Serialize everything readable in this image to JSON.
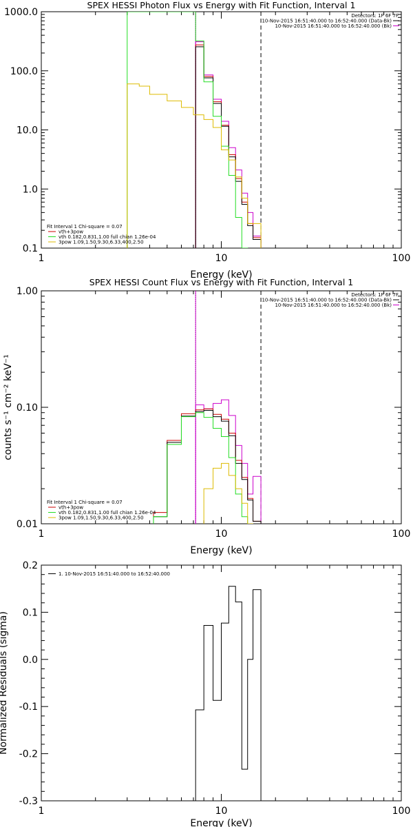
{
  "chart_data": [
    {
      "type": "step",
      "title": "SPEX HESSI Photon Flux vs Energy with Fit Function, Interval 1",
      "xlabel": "Energy (keV)",
      "ylabel": "",
      "xscale": "log",
      "yscale": "log",
      "xlim": [
        1,
        100
      ],
      "ylim": [
        0.1,
        1000
      ],
      "xticks": [
        1,
        10,
        100
      ],
      "xtick_labels": [
        "1",
        "10",
        "100"
      ],
      "yticks": [
        0.1,
        1,
        10,
        100,
        1000
      ],
      "ytick_labels": [
        "0.1",
        "1.0",
        "10.0",
        "100.0",
        "1000.0"
      ],
      "vlines": [
        {
          "x": 7.2,
          "style": "dotted",
          "color": "#000000"
        },
        {
          "x": 7.2,
          "style": "solid",
          "color": "#cc00cc"
        },
        {
          "x": 16.6,
          "style": "dashed",
          "color": "#000000"
        }
      ],
      "info_lines": [
        "Detectors: 1F 6F 7F",
        "10-Nov-2015 16:51:40.000 to 16:52:40.000 (Data-Bk)",
        "10-Nov-2015 16:51:40.000 to 16:52:40.000 (Bk)"
      ],
      "info_colors": [
        "",
        "#000000",
        "#cc00cc"
      ],
      "legend": {
        "header": "Fit Interval 1    Chi-square = 0.07",
        "items": [
          {
            "label": "vth+3pow",
            "color": "#cc0000"
          },
          {
            "label": "vth 0.182,0.831,1.00  full chian 1.26e-04",
            "color": "#22dd22"
          },
          {
            "label": "3pow 1.09,1.50,9.30,6.33,400,2.50",
            "color": "#ddbb00"
          }
        ]
      },
      "series": [
        {
          "color": "#cc00cc",
          "edges": [
            7.2,
            8.0,
            9.0,
            10.0,
            11.0,
            12.0,
            13.0,
            14.0,
            15.0,
            16.6
          ],
          "values": [
            310,
            85,
            33,
            14,
            5,
            2.1,
            0.85,
            0.4,
            0.16
          ]
        },
        {
          "color": "#cc0000",
          "edges": [
            7.2,
            8.0,
            9.0,
            10.0,
            11.0,
            12.0,
            13.0,
            14.0,
            15.0,
            16.6
          ],
          "values": [
            275,
            80,
            30,
            12,
            3.8,
            1.5,
            0.6,
            0.26,
            0.15
          ]
        },
        {
          "color": "#000000",
          "edges": [
            7.2,
            8.0,
            9.0,
            10.0,
            11.0,
            12.0,
            13.0,
            14.0,
            15.0,
            16.6
          ],
          "values": [
            255,
            76,
            28,
            11.5,
            3.5,
            1.35,
            0.55,
            0.24,
            0.14
          ]
        },
        {
          "color": "#22dd22",
          "edges": [
            3.0,
            7.2,
            8.0,
            9.0,
            10.0,
            11.0,
            12.0,
            13.0,
            14.0
          ],
          "values": [
            1000,
            320,
            65,
            17,
            5.3,
            1.7,
            0.33,
            0.1
          ]
        },
        {
          "color": "#ddbb00",
          "edges": [
            3.0,
            3.5,
            4.0,
            5.0,
            6.0,
            7.0,
            8.0,
            9.0,
            10.0,
            11.0,
            12.0,
            13.0,
            14.0,
            16.6
          ],
          "values": [
            60,
            55,
            40,
            31,
            24,
            18,
            15,
            11,
            4.6,
            3.1,
            1.6,
            0.7,
            0.26
          ]
        }
      ]
    },
    {
      "type": "step",
      "title": "SPEX HESSI Count Flux vs Energy with Fit Function, Interval 1",
      "xlabel": "Energy (keV)",
      "ylabel": "counts s⁻¹ cm⁻² keV⁻¹",
      "xscale": "log",
      "yscale": "log",
      "xlim": [
        1,
        100
      ],
      "ylim": [
        0.01,
        1.0
      ],
      "xticks": [
        1,
        10,
        100
      ],
      "xtick_labels": [
        "1",
        "10",
        "100"
      ],
      "yticks": [
        0.01,
        0.1,
        1.0
      ],
      "ytick_labels": [
        "0.01",
        "0.10",
        "1.00"
      ],
      "vlines": [
        {
          "x": 7.2,
          "style": "dotted",
          "color": "#000000"
        },
        {
          "x": 7.2,
          "style": "solid",
          "color": "#cc00cc"
        },
        {
          "x": 16.6,
          "style": "dashed",
          "color": "#000000"
        }
      ],
      "info_lines": [
        "Detectors: 1F 6F 7F",
        "10-Nov-2015 16:51:40.000 to 16:52:40.000 (Data-Bk)",
        "10-Nov-2015 16:51:40.000 to 16:52:40.000 (Bk)"
      ],
      "info_colors": [
        "",
        "#000000",
        "#cc00cc"
      ],
      "legend": {
        "header": "Fit Interval 1    Chi-square = 0.07",
        "items": [
          {
            "label": "vth+3pow",
            "color": "#cc0000"
          },
          {
            "label": "vth 0.182,0.831,1.00  full chian 1.26e-04",
            "color": "#22dd22"
          },
          {
            "label": "3pow 1.09,1.50,9.30,6.33,400,2.50",
            "color": "#ddbb00"
          }
        ]
      },
      "series": [
        {
          "color": "#cc00cc",
          "edges": [
            7.2,
            8.0,
            9.0,
            10.0,
            11.0,
            12.0,
            13.0,
            14.0,
            15.0,
            16.6
          ],
          "values": [
            0.105,
            0.097,
            0.108,
            0.116,
            0.085,
            0.047,
            0.033,
            0.018,
            0.0255
          ]
        },
        {
          "color": "#cc0000",
          "edges": [
            4.2,
            5.0,
            6.0,
            7.2,
            8.0,
            9.0,
            10.0,
            11.0,
            12.0,
            13.0,
            14.0,
            15.0,
            16.6
          ],
          "values": [
            0.0125,
            0.052,
            0.088,
            0.095,
            0.097,
            0.087,
            0.079,
            0.06,
            0.035,
            0.025,
            0.0165,
            0.0105
          ]
        },
        {
          "color": "#000000",
          "edges": [
            4.2,
            5.0,
            6.0,
            7.2,
            8.0,
            9.0,
            10.0,
            11.0,
            12.0,
            13.0,
            14.0,
            15.0,
            16.6
          ],
          "values": [
            0.0115,
            0.05,
            0.084,
            0.092,
            0.094,
            0.083,
            0.076,
            0.057,
            0.033,
            0.024,
            0.016,
            0.0105
          ]
        },
        {
          "color": "#22dd22",
          "edges": [
            4.2,
            5.0,
            6.0,
            7.2,
            8.0,
            9.0,
            10.0,
            11.0,
            12.0,
            13.0,
            14.0
          ],
          "values": [
            0.0115,
            0.048,
            0.083,
            0.09,
            0.082,
            0.066,
            0.056,
            0.037,
            0.018,
            0.0115,
            0.01
          ]
        },
        {
          "color": "#ddbb00",
          "edges": [
            8.0,
            9.0,
            10.0,
            11.0,
            12.0,
            13.0,
            14.0,
            15.0
          ],
          "values": [
            0.02,
            0.03,
            0.033,
            0.026,
            0.02,
            0.015,
            0.01
          ]
        }
      ]
    },
    {
      "type": "step",
      "title": "",
      "xlabel": "Energy (keV)",
      "ylabel": "Normalized Residuals (sigma)",
      "xscale": "log",
      "yscale": "linear",
      "xlim": [
        1,
        100
      ],
      "ylim": [
        -0.3,
        0.2
      ],
      "xticks": [
        1,
        10,
        100
      ],
      "xtick_labels": [
        "1",
        "10",
        "100"
      ],
      "yticks": [
        -0.3,
        -0.2,
        -0.1,
        0.0,
        0.1,
        0.2
      ],
      "ytick_labels": [
        "-0.3",
        "-0.2",
        "-0.1",
        "0.0",
        "0.1",
        "0.2"
      ],
      "vlines": [],
      "info_lines": [],
      "info_colors": [],
      "legend": {
        "header": "",
        "items": [
          {
            "label": "1. 10-Nov-2015 16:51:40.000 to 16:52:40.000",
            "color": "#000000"
          }
        ]
      },
      "series": [
        {
          "color": "#000000",
          "edges": [
            7.2,
            8.0,
            9.0,
            10.0,
            11.0,
            12.0,
            13.0,
            14.0,
            15.0,
            16.6
          ],
          "values": [
            -0.107,
            0.072,
            -0.087,
            0.077,
            0.155,
            0.122,
            -0.233,
            0.0,
            0.148
          ]
        }
      ]
    }
  ]
}
